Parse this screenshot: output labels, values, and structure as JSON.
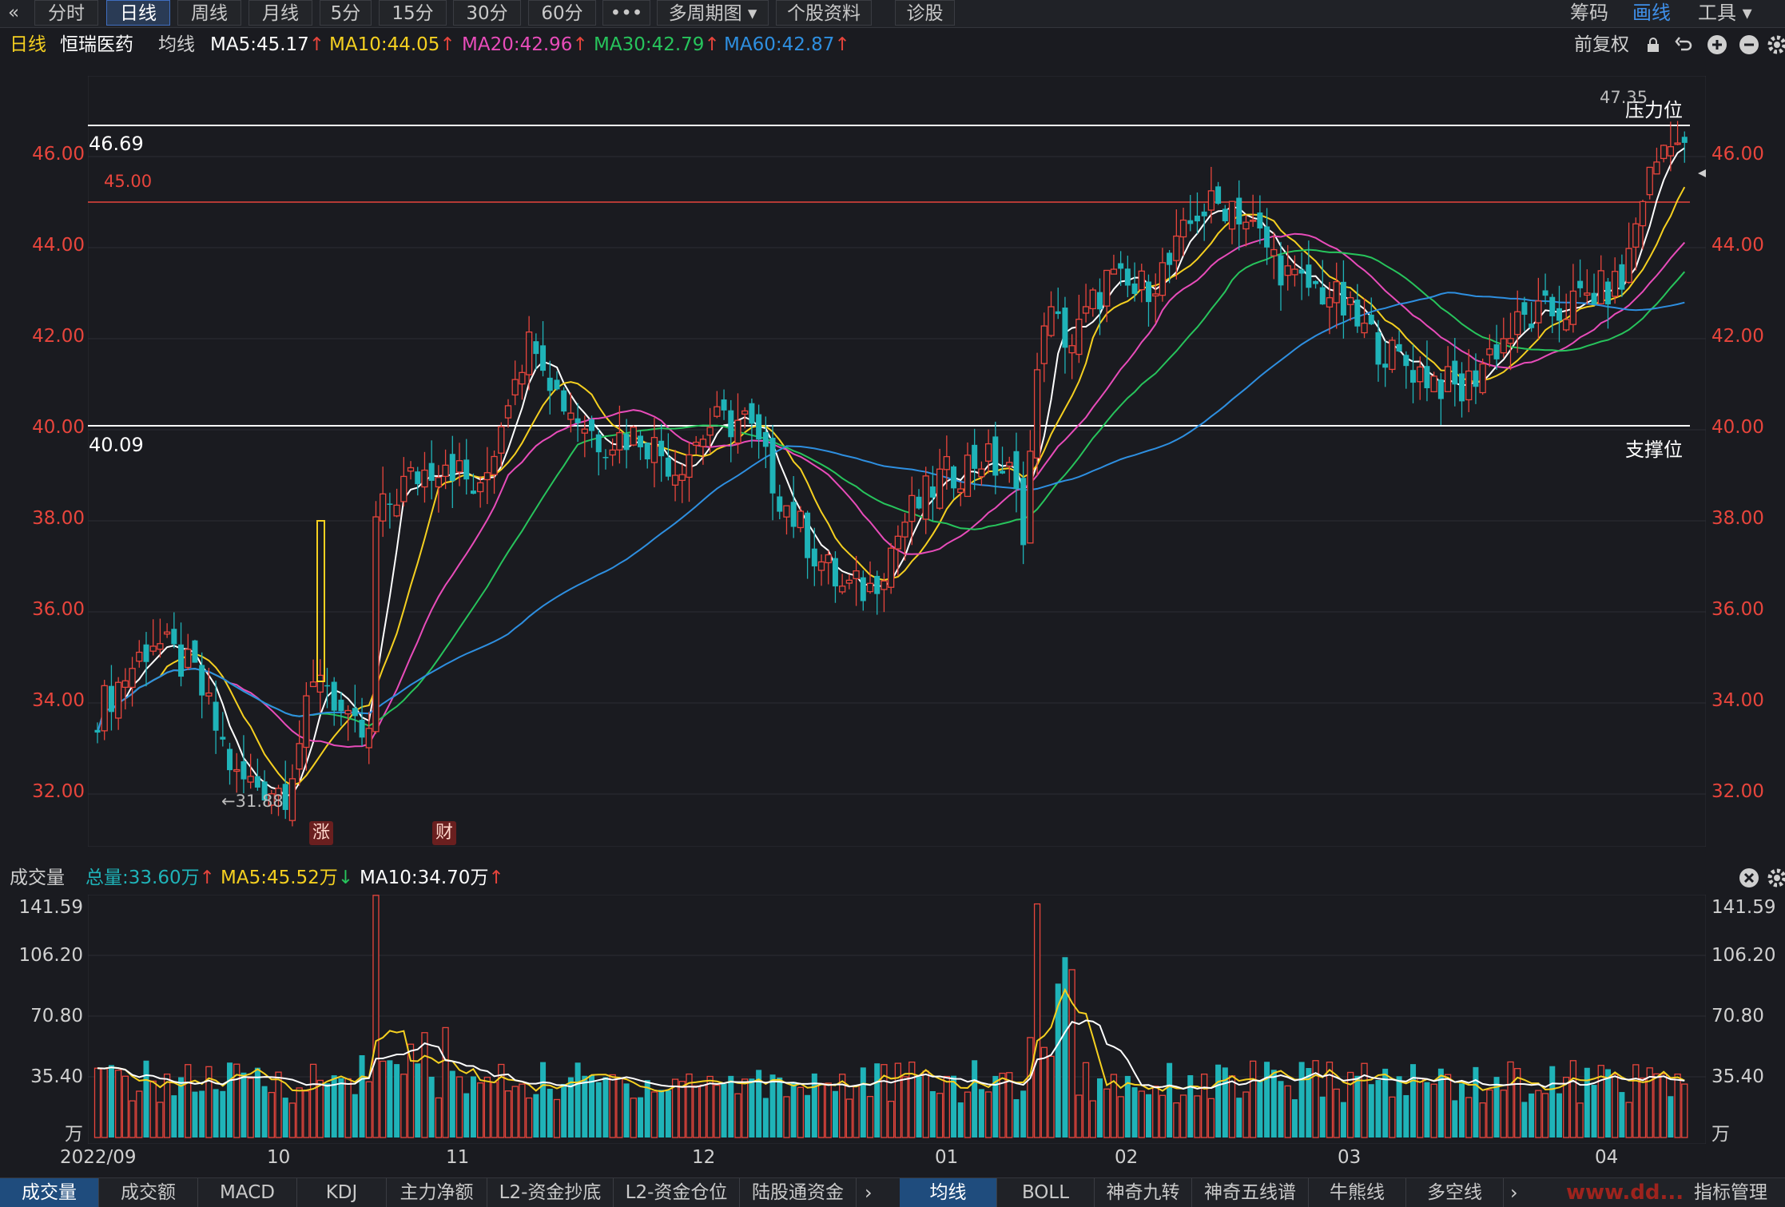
{
  "toolbar": {
    "back_icon": "«",
    "tabs": [
      {
        "label": "分时",
        "active": false
      },
      {
        "label": "日线",
        "active": true
      },
      {
        "label": "周线",
        "active": false
      },
      {
        "label": "月线",
        "active": false
      },
      {
        "label": "5分",
        "active": false
      },
      {
        "label": "15分",
        "active": false
      },
      {
        "label": "30分",
        "active": false
      },
      {
        "label": "60分",
        "active": false
      },
      {
        "label": "•••",
        "active": false
      },
      {
        "label": "多周期图 ▾",
        "active": false
      },
      {
        "label": "个股资料",
        "active": false
      },
      {
        "label": "诊股",
        "active": false
      }
    ],
    "right": {
      "chip": "筹码",
      "draw": "画线",
      "tools": "工具 ▾"
    }
  },
  "info": {
    "period": "日线",
    "stock_name": "恒瑞医药",
    "ma_label": "均线",
    "ma5": "MA5:45.17",
    "ma10": "MA10:44.05",
    "ma20": "MA20:42.96",
    "ma30": "MA30:42.79",
    "ma60": "MA60:42.87",
    "restore": "前复权"
  },
  "colors": {
    "up": "#e8453c",
    "down": "#1fb3b8",
    "ma5": "#ffffff",
    "ma10": "#f5d020",
    "ma20": "#e84cba",
    "ma30": "#27c45c",
    "ma60": "#2e8fe0",
    "accent": "#3f8fe8"
  },
  "main_axis": {
    "ticks_left": [
      "46.00",
      "44.00",
      "42.00",
      "40.00",
      "38.00",
      "36.00",
      "34.00",
      "32.00"
    ],
    "ticks_right": [
      "46.00",
      "44.00",
      "42.00",
      "40.00",
      "38.00",
      "36.00",
      "34.00",
      "32.00"
    ]
  },
  "levels": {
    "resistance_value": "46.69",
    "resistance_label": "压力位",
    "support_value": "40.09",
    "support_label": "支撑位",
    "line45": "45.00",
    "high_label": "47.35",
    "low_label": "←31.88"
  },
  "markers": [
    {
      "text": "涨"
    },
    {
      "text": "财"
    }
  ],
  "volume": {
    "title": "成交量",
    "total": "总量:33.60万",
    "ma5": "MA5:45.52万",
    "ma10": "MA10:34.70万",
    "ticks_left": [
      "141.59",
      "106.20",
      "70.80",
      "35.40",
      "万"
    ],
    "ticks_right": [
      "141.59",
      "106.20",
      "70.80",
      "35.40",
      "万"
    ]
  },
  "x_axis": [
    "2022/09",
    "10",
    "11",
    "12",
    "01",
    "02",
    "03",
    "04"
  ],
  "bottom_tabs_left": [
    "成交量",
    "成交额",
    "MACD",
    "KDJ",
    "主力净额",
    "L2-资金抄底",
    "L2-资金仓位",
    "陆股通资金"
  ],
  "bottom_tabs_right": [
    "均线",
    "BOLL",
    "神奇九转",
    "神奇五线谱",
    "牛熊线",
    "多空线"
  ],
  "bottom_right_label": "指标管理",
  "watermark": "www.dd..."
}
